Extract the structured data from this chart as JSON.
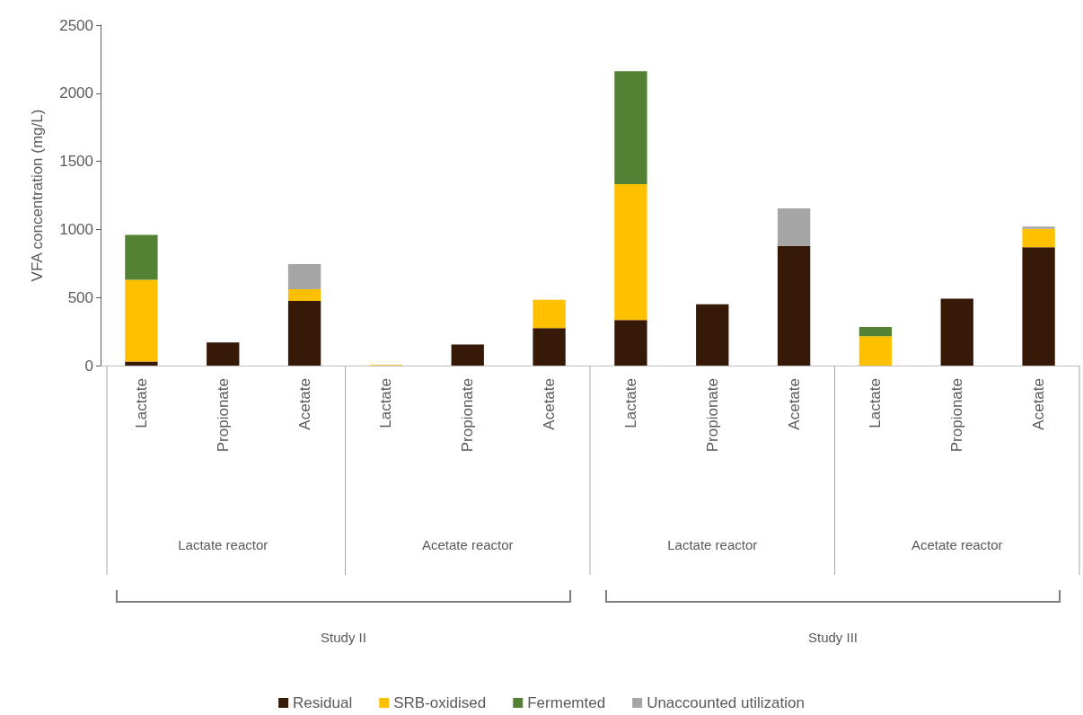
{
  "chart_data": {
    "type": "bar",
    "stacked": true,
    "ylabel": "VFA concentration (mg/L)",
    "categories": [
      "Lactate",
      "Propionate",
      "Acetate",
      "Lactate",
      "Propionate",
      "Acetate",
      "Lactate",
      "Propionate",
      "Acetate",
      "Lactate",
      "Propionate",
      "Acetate"
    ],
    "series": [
      {
        "name": "Residual",
        "color": "#371908",
        "values": [
          30,
          170,
          475,
          0,
          155,
          276,
          334,
          450,
          879,
          0,
          492,
          869
        ]
      },
      {
        "name": "SRB-oxidised",
        "color": "#ffc000",
        "values": [
          600,
          0,
          85,
          5,
          0,
          208,
          998,
          0,
          0,
          216,
          0,
          136
        ]
      },
      {
        "name": "Fermemted",
        "color": "#548235",
        "values": [
          330,
          0,
          0,
          0,
          0,
          0,
          830,
          0,
          0,
          67,
          0,
          0
        ]
      },
      {
        "name": "Unaccounted utilization",
        "color": "#a5a5a5",
        "values": [
          0,
          0,
          185,
          0,
          0,
          0,
          0,
          0,
          276,
          0,
          0,
          16
        ]
      }
    ],
    "ylim": [
      0,
      2500
    ],
    "yticks": [
      0,
      500,
      1000,
      1500,
      2000,
      2500
    ],
    "annotations": [
      "Lactate reactor",
      "Acetate reactor",
      "Lactate reactor",
      "Acetate reactor",
      "Study II",
      "Study III"
    ],
    "grid": false,
    "legend": "bottom"
  }
}
